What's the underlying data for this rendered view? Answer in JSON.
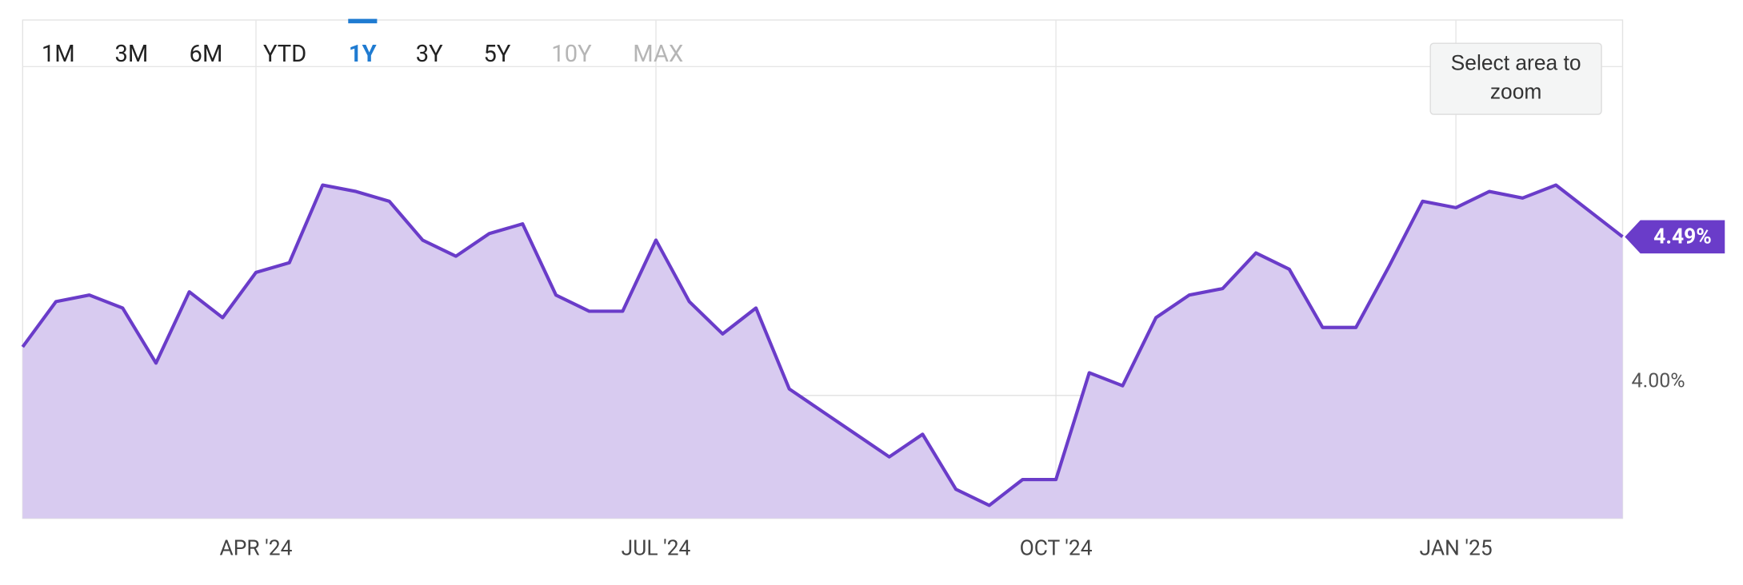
{
  "range_selector": {
    "buttons": [
      "1M",
      "3M",
      "6M",
      "YTD",
      "1Y",
      "3Y",
      "5Y",
      "10Y",
      "MAX"
    ],
    "selected": "1Y",
    "disabled": [
      "10Y",
      "MAX"
    ]
  },
  "zoom_hint": "Select area to zoom",
  "chart_data": {
    "type": "area",
    "categories": [
      null,
      null,
      null,
      null,
      null,
      null,
      null,
      "APR '24",
      null,
      null,
      null,
      null,
      null,
      null,
      null,
      null,
      null,
      null,
      null,
      "JUL '24",
      null,
      null,
      null,
      null,
      null,
      null,
      null,
      null,
      null,
      null,
      null,
      "OCT '24",
      null,
      null,
      null,
      null,
      null,
      null,
      null,
      null,
      null,
      null,
      null,
      "JAN '25",
      null,
      null,
      null,
      null,
      null
    ],
    "values": [
      4.15,
      4.29,
      4.31,
      4.27,
      4.1,
      4.32,
      4.24,
      4.38,
      4.41,
      4.65,
      4.63,
      4.6,
      4.48,
      4.43,
      4.5,
      4.53,
      4.31,
      4.26,
      4.26,
      4.48,
      4.29,
      4.19,
      4.27,
      4.02,
      3.95,
      3.88,
      3.81,
      3.88,
      3.71,
      3.66,
      3.74,
      3.74,
      4.07,
      4.03,
      4.24,
      4.31,
      4.33,
      4.44,
      4.39,
      4.21,
      4.21,
      4.4,
      4.6,
      4.58,
      4.63,
      4.61,
      4.65,
      4.57,
      4.49
    ],
    "value_labels": [
      null,
      null,
      null,
      null,
      null,
      null,
      null,
      null,
      null,
      null,
      null,
      null,
      null,
      null,
      null,
      null,
      null,
      null,
      null,
      null,
      null,
      null,
      null,
      null,
      null,
      null,
      null,
      null,
      null,
      null,
      null,
      null,
      null,
      null,
      null,
      null,
      null,
      null,
      null,
      null,
      null,
      null,
      null,
      null,
      null,
      null,
      null,
      null,
      "4.49%"
    ],
    "color": "#6a3cc9",
    "fill": "#d8cbf0",
    "ylim": [
      3.62,
      5.16
    ],
    "yticks": [
      {
        "value": 4,
        "label": "4.00%"
      }
    ],
    "grid": true
  }
}
